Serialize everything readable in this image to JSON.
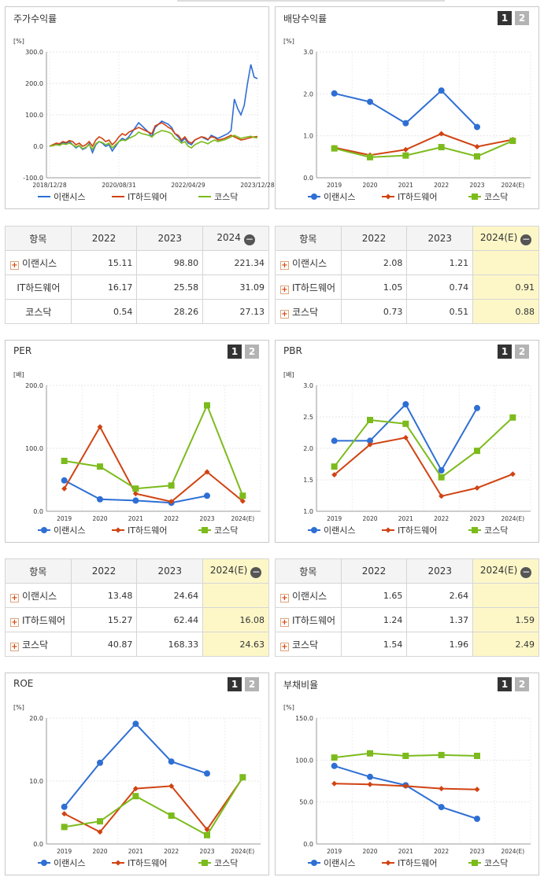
{
  "colors": {
    "erance": "#2e6fd4",
    "ithw": "#d04312",
    "kosdaq": "#7cbb1c"
  },
  "panels": {
    "stock": {
      "title": "주가수익률"
    },
    "div": {
      "title": "배당수익률",
      "btn1": "1",
      "btn2": "2"
    },
    "per": {
      "title": "PER",
      "btn1": "1",
      "btn2": "2"
    },
    "pbr": {
      "title": "PBR",
      "btn1": "1",
      "btn2": "2"
    },
    "roe": {
      "title": "ROE",
      "btn1": "1",
      "btn2": "2"
    },
    "debt": {
      "title": "부채비율",
      "btn1": "1",
      "btn2": "2"
    }
  },
  "tables": {
    "stock": {
      "header": [
        "항목",
        "2022",
        "2023",
        "2024"
      ],
      "rows": [
        {
          "name": "이랜시스",
          "plus": true,
          "vals": [
            "15.11",
            "98.80",
            "221.34"
          ]
        },
        {
          "name": "IT하드웨어",
          "plus": false,
          "vals": [
            "16.17",
            "25.58",
            "31.09"
          ]
        },
        {
          "name": "코스닥",
          "plus": false,
          "vals": [
            "0.54",
            "28.26",
            "27.13"
          ]
        }
      ]
    },
    "div": {
      "header": [
        "항목",
        "2022",
        "2023",
        "2024(E)"
      ],
      "rows": [
        {
          "name": "이랜시스",
          "plus": true,
          "vals": [
            "2.08",
            "1.21",
            ""
          ]
        },
        {
          "name": "IT하드웨어",
          "plus": true,
          "vals": [
            "1.05",
            "0.74",
            "0.91"
          ]
        },
        {
          "name": "코스닥",
          "plus": true,
          "vals": [
            "0.73",
            "0.51",
            "0.88"
          ]
        }
      ]
    },
    "per": {
      "header": [
        "항목",
        "2022",
        "2023",
        "2024(E)"
      ],
      "rows": [
        {
          "name": "이랜시스",
          "plus": true,
          "vals": [
            "13.48",
            "24.64",
            ""
          ]
        },
        {
          "name": "IT하드웨어",
          "plus": true,
          "vals": [
            "15.27",
            "62.44",
            "16.08"
          ]
        },
        {
          "name": "코스닥",
          "plus": true,
          "vals": [
            "40.87",
            "168.33",
            "24.63"
          ]
        }
      ]
    },
    "pbr": {
      "header": [
        "항목",
        "2022",
        "2023",
        "2024(E)"
      ],
      "rows": [
        {
          "name": "이랜시스",
          "plus": true,
          "vals": [
            "1.65",
            "2.64",
            ""
          ]
        },
        {
          "name": "IT하드웨어",
          "plus": true,
          "vals": [
            "1.24",
            "1.37",
            "1.59"
          ]
        },
        {
          "name": "코스닥",
          "plus": true,
          "vals": [
            "1.54",
            "1.96",
            "2.49"
          ]
        }
      ]
    }
  },
  "chart_data": [
    {
      "id": "stock",
      "type": "line",
      "unit": "[%]",
      "ylim": [
        -100,
        300
      ],
      "yticks": [
        "300.0",
        "200.0",
        "100.0",
        "0.0",
        "-100.0"
      ],
      "xticks": [
        "2018/12/28",
        "2020/08/31",
        "2022/04/29",
        "2023/12/28"
      ],
      "legend": [
        "이랜시스",
        "IT하드웨어",
        "코스닥"
      ],
      "series": [
        {
          "name": "이랜시스",
          "values": [
            0,
            3,
            8,
            5,
            12,
            10,
            15,
            5,
            -5,
            2,
            -10,
            -5,
            8,
            -20,
            5,
            15,
            10,
            0,
            5,
            -15,
            0,
            15,
            25,
            20,
            30,
            45,
            60,
            75,
            65,
            55,
            45,
            30,
            60,
            70,
            80,
            75,
            70,
            60,
            40,
            30,
            15,
            25,
            10,
            5,
            20,
            25,
            30,
            25,
            20,
            35,
            30,
            25,
            30,
            35,
            40,
            50,
            150,
            120,
            100,
            130,
            200,
            260,
            220,
            215
          ]
        },
        {
          "name": "IT하드웨어",
          "values": [
            0,
            5,
            10,
            8,
            15,
            12,
            18,
            15,
            5,
            10,
            0,
            5,
            15,
            0,
            20,
            30,
            25,
            15,
            20,
            5,
            15,
            30,
            40,
            35,
            45,
            50,
            55,
            60,
            55,
            50,
            45,
            40,
            65,
            70,
            75,
            68,
            60,
            55,
            40,
            35,
            20,
            30,
            15,
            10,
            20,
            25,
            30,
            28,
            22,
            30,
            28,
            20,
            22,
            25,
            30,
            35,
            30,
            25,
            20,
            22,
            25,
            28,
            30,
            31
          ]
        },
        {
          "name": "코스닥",
          "values": [
            0,
            2,
            5,
            3,
            8,
            6,
            10,
            5,
            -2,
            3,
            -8,
            -3,
            5,
            -10,
            8,
            15,
            12,
            5,
            10,
            -5,
            5,
            15,
            20,
            18,
            25,
            30,
            35,
            45,
            40,
            38,
            35,
            30,
            40,
            45,
            50,
            48,
            45,
            40,
            25,
            20,
            10,
            15,
            0,
            -5,
            5,
            10,
            15,
            12,
            8,
            15,
            20,
            15,
            18,
            20,
            25,
            30,
            35,
            30,
            25,
            28,
            30,
            32,
            28,
            27
          ]
        }
      ]
    },
    {
      "id": "div",
      "type": "line",
      "unit": "[%]",
      "ylim": [
        0,
        3
      ],
      "yticks": [
        "3.0",
        "2.0",
        "1.0",
        "0.0"
      ],
      "categories": [
        "2019",
        "2020",
        "2021",
        "2022",
        "2023",
        "2024(E)"
      ],
      "legend": [
        "이랜시스",
        "IT하드웨어",
        "코스닥"
      ],
      "series": [
        {
          "name": "이랜시스",
          "values": [
            2.01,
            1.81,
            1.3,
            2.08,
            1.21,
            null
          ]
        },
        {
          "name": "IT하드웨어",
          "values": [
            0.72,
            0.54,
            0.67,
            1.05,
            0.74,
            0.91
          ]
        },
        {
          "name": "코스닥",
          "values": [
            0.7,
            0.49,
            0.53,
            0.73,
            0.51,
            0.88
          ]
        }
      ]
    },
    {
      "id": "per",
      "type": "line",
      "unit": "[배]",
      "ylim": [
        0,
        200
      ],
      "yticks": [
        "200.0",
        "100.0",
        "0.0"
      ],
      "categories": [
        "2019",
        "2020",
        "2021",
        "2022",
        "2023",
        "2024(E)"
      ],
      "legend": [
        "이랜시스",
        "IT하드웨어",
        "코스닥"
      ],
      "series": [
        {
          "name": "이랜시스",
          "values": [
            49,
            19,
            17,
            13.48,
            24.64,
            null
          ]
        },
        {
          "name": "IT하드웨어",
          "values": [
            36,
            134,
            28,
            15.27,
            62.44,
            16.08
          ]
        },
        {
          "name": "코스닥",
          "values": [
            80,
            71,
            36,
            40.87,
            168.33,
            24.63
          ]
        }
      ]
    },
    {
      "id": "pbr",
      "type": "line",
      "unit": "[배]",
      "ylim": [
        1,
        3
      ],
      "yticks": [
        "3.0",
        "2.5",
        "2.0",
        "1.5",
        "1.0"
      ],
      "categories": [
        "2019",
        "2020",
        "2021",
        "2022",
        "2023",
        "2024(E)"
      ],
      "legend": [
        "이랜시스",
        "IT하드웨어",
        "코스닥"
      ],
      "series": [
        {
          "name": "이랜시스",
          "values": [
            2.12,
            2.12,
            2.7,
            1.65,
            2.64,
            null
          ]
        },
        {
          "name": "IT하드웨어",
          "values": [
            1.58,
            2.06,
            2.17,
            1.24,
            1.37,
            1.59
          ]
        },
        {
          "name": "코스닥",
          "values": [
            1.71,
            2.45,
            2.39,
            1.54,
            1.96,
            2.49
          ]
        }
      ]
    },
    {
      "id": "roe",
      "type": "line",
      "unit": "[%]",
      "ylim": [
        0,
        20
      ],
      "yticks": [
        "20.0",
        "10.0",
        "0.0"
      ],
      "categories": [
        "2019",
        "2020",
        "2021",
        "2022",
        "2023",
        "2024(E)"
      ],
      "legend": [
        "이랜시스",
        "IT하드웨어",
        "코스닥"
      ],
      "series": [
        {
          "name": "이랜시스",
          "values": [
            5.9,
            12.9,
            19.1,
            13.1,
            11.2,
            null
          ]
        },
        {
          "name": "IT하드웨어",
          "values": [
            4.8,
            1.9,
            8.8,
            9.2,
            2.3,
            10.5
          ]
        },
        {
          "name": "코스닥",
          "values": [
            2.7,
            3.6,
            7.6,
            4.5,
            1.4,
            10.6
          ]
        }
      ]
    },
    {
      "id": "debt",
      "type": "line",
      "unit": "[%]",
      "ylim": [
        0,
        150
      ],
      "yticks": [
        "150.0",
        "100.0",
        "50.0",
        "0.0"
      ],
      "categories": [
        "2019",
        "2020",
        "2021",
        "2022",
        "2023",
        "2024(E)"
      ],
      "legend": [
        "이랜시스",
        "IT하드웨어",
        "코스닥"
      ],
      "series": [
        {
          "name": "이랜시스",
          "values": [
            93,
            80,
            70,
            44,
            30,
            null
          ]
        },
        {
          "name": "IT하드웨어",
          "values": [
            72,
            71,
            69,
            66,
            65,
            null
          ]
        },
        {
          "name": "코스닥",
          "values": [
            103,
            108,
            105,
            106,
            105,
            null
          ]
        }
      ]
    }
  ]
}
